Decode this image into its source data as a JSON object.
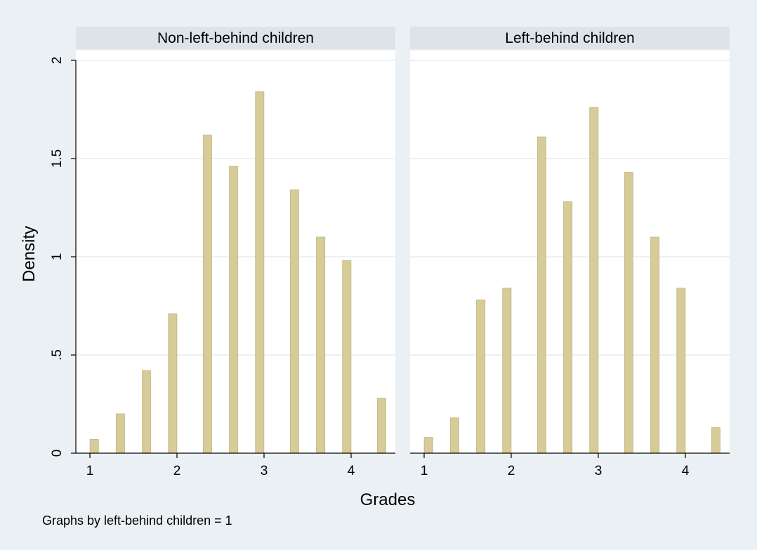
{
  "colors": {
    "page_background": "#eaf0f3",
    "plot_background": "#ffffff",
    "panel_header": "#dce4e9",
    "grid": "#e8ecef",
    "bar_fill": "#d7cc99",
    "bar_stroke": "#c7bb84",
    "axis": "#000000"
  },
  "note": "Graphs by left-behind children = 1",
  "chart_data": {
    "type": "bar",
    "subtype": "histogram (by-group panels)",
    "xlabel": "Grades",
    "ylabel": "Density",
    "xlim": [
      0.9,
      4.4
    ],
    "ylim": [
      0,
      2
    ],
    "x_ticks": [
      1,
      2,
      3,
      4
    ],
    "x_tick_labels": [
      "1",
      "2",
      "3",
      "4"
    ],
    "y_ticks": [
      0,
      0.5,
      1,
      1.5,
      2
    ],
    "y_tick_labels": [
      "0",
      ".5",
      "1",
      "1.5",
      "2"
    ],
    "grid": true,
    "legend": "none",
    "panels": [
      {
        "title": "Non-left-behind children",
        "bars": [
          {
            "x": 1.05,
            "density": 0.07
          },
          {
            "x": 1.35,
            "density": 0.2
          },
          {
            "x": 1.65,
            "density": 0.42
          },
          {
            "x": 1.95,
            "density": 0.71
          },
          {
            "x": 2.35,
            "density": 1.62
          },
          {
            "x": 2.65,
            "density": 1.46
          },
          {
            "x": 2.95,
            "density": 1.84
          },
          {
            "x": 3.35,
            "density": 1.34
          },
          {
            "x": 3.65,
            "density": 1.1
          },
          {
            "x": 3.95,
            "density": 0.98
          },
          {
            "x": 4.35,
            "density": 0.28
          }
        ]
      },
      {
        "title": "Left-behind children",
        "bars": [
          {
            "x": 1.05,
            "density": 0.08
          },
          {
            "x": 1.35,
            "density": 0.18
          },
          {
            "x": 1.65,
            "density": 0.78
          },
          {
            "x": 1.95,
            "density": 0.84
          },
          {
            "x": 2.35,
            "density": 1.61
          },
          {
            "x": 2.65,
            "density": 1.28
          },
          {
            "x": 2.95,
            "density": 1.76
          },
          {
            "x": 3.35,
            "density": 1.43
          },
          {
            "x": 3.65,
            "density": 1.1
          },
          {
            "x": 3.95,
            "density": 0.84
          },
          {
            "x": 4.35,
            "density": 0.13
          }
        ]
      }
    ]
  }
}
